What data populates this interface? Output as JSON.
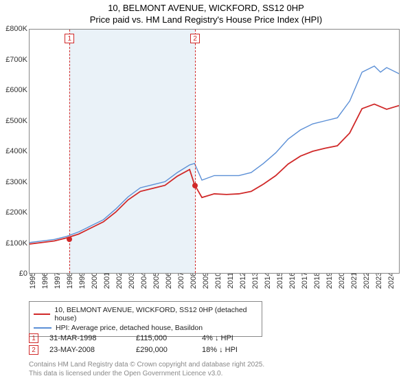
{
  "titles": {
    "main": "10, BELMONT AVENUE, WICKFORD, SS12 0HP",
    "sub": "Price paid vs. HM Land Registry's House Price Index (HPI)"
  },
  "chart": {
    "type": "line",
    "xlim": [
      1995,
      2025
    ],
    "ylim": [
      0,
      800000
    ],
    "ytick_step": 100000,
    "yticks_labels": [
      "£0",
      "£100K",
      "£200K",
      "£300K",
      "£400K",
      "£500K",
      "£600K",
      "£700K",
      "£800K"
    ],
    "xticks": [
      1995,
      1996,
      1997,
      1998,
      1999,
      2000,
      2001,
      2002,
      2003,
      2004,
      2005,
      2006,
      2007,
      2008,
      2009,
      2010,
      2011,
      2012,
      2013,
      2014,
      2015,
      2016,
      2017,
      2018,
      2019,
      2020,
      2021,
      2022,
      2023,
      2024
    ],
    "band_color": "#eaf2f8",
    "grid_color": "#888888",
    "background_color": "#ffffff",
    "label_fontsize": 11,
    "title_fontsize": 13,
    "series": [
      {
        "name": "hpi",
        "label": "HPI: Average price, detached house, Basildon",
        "color": "#5b8fd6",
        "width": 1.4,
        "points_x": [
          1995,
          1996,
          1997,
          1998,
          1999,
          2000,
          2001,
          2002,
          2003,
          2004,
          2005,
          2006,
          2007,
          2008,
          2008.4,
          2009,
          2010,
          2011,
          2012,
          2013,
          2014,
          2015,
          2016,
          2017,
          2018,
          2019,
          2020,
          2021,
          2022,
          2023,
          2023.5,
          2024,
          2025
        ],
        "points_y": [
          100,
          105,
          110,
          120,
          135,
          155,
          175,
          210,
          250,
          280,
          290,
          300,
          330,
          355,
          360,
          305,
          320,
          320,
          320,
          330,
          360,
          395,
          440,
          470,
          490,
          500,
          510,
          565,
          660,
          680,
          660,
          675,
          655
        ]
      },
      {
        "name": "property",
        "label": "10, BELMONT AVENUE, WICKFORD, SS12 0HP (detached house)",
        "color": "#d02828",
        "width": 1.8,
        "points_x": [
          1995,
          1996,
          1997,
          1998,
          1999,
          2000,
          2001,
          2002,
          2003,
          2004,
          2005,
          2006,
          2007,
          2008,
          2008.4,
          2009,
          2010,
          2011,
          2012,
          2013,
          2014,
          2015,
          2016,
          2017,
          2018,
          2019,
          2020,
          2021,
          2022,
          2023,
          2024,
          2025
        ],
        "points_y": [
          95,
          100,
          105,
          115,
          128,
          148,
          168,
          200,
          240,
          268,
          278,
          288,
          318,
          340,
          290,
          248,
          260,
          258,
          260,
          268,
          292,
          320,
          358,
          384,
          400,
          410,
          418,
          460,
          540,
          555,
          538,
          550
        ]
      }
    ],
    "sale_markers": [
      {
        "n": "1",
        "x": 1998.24,
        "y": 115
      },
      {
        "n": "2",
        "x": 2008.4,
        "y": 290
      }
    ]
  },
  "legend": {
    "items": [
      {
        "color": "#d02828",
        "width": 2,
        "label": "10, BELMONT AVENUE, WICKFORD, SS12 0HP (detached house)"
      },
      {
        "color": "#5b8fd6",
        "width": 1.5,
        "label": "HPI: Average price, detached house, Basildon"
      }
    ]
  },
  "sales": [
    {
      "n": "1",
      "date": "31-MAR-1998",
      "price": "£115,000",
      "diff": "4% ↓ HPI"
    },
    {
      "n": "2",
      "date": "23-MAY-2008",
      "price": "£290,000",
      "diff": "18% ↓ HPI"
    }
  ],
  "footer": {
    "line1": "Contains HM Land Registry data © Crown copyright and database right 2025.",
    "line2": "This data is licensed under the Open Government Licence v3.0."
  }
}
